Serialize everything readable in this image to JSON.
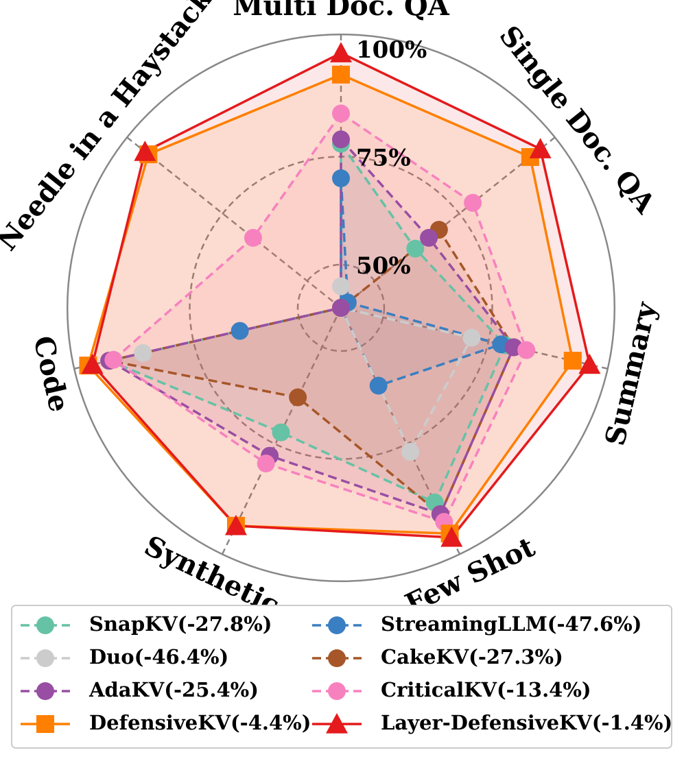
{
  "chart_data": {
    "type": "radar",
    "axes": [
      "Multi Doc. QA",
      "Single Doc. QA",
      "Summary",
      "Few Shot",
      "Synthetic",
      "Code",
      "Needle in a Haystack"
    ],
    "radial_range": [
      40,
      100
    ],
    "radial_ticks": [
      {
        "value": 50,
        "label": "50%"
      },
      {
        "value": 75,
        "label": "75%"
      },
      {
        "value": 100,
        "label": "100%"
      }
    ],
    "grid": true,
    "legend_position": "bottom",
    "series": [
      {
        "name": "SnapKV(-27.8%)",
        "color": "#66c2a5",
        "marker": "circle",
        "values": [
          78,
          62,
          79,
          90,
          72,
          95,
          40
        ]
      },
      {
        "name": "StreamingLLM(-47.6%)",
        "color": "#3a7fc1",
        "marker": "circle",
        "values": [
          70,
          42,
          78,
          60,
          40,
          64,
          40
        ]
      },
      {
        "name": "Duo(-46.4%)",
        "color": "#cccccc",
        "marker": "circle",
        "values": [
          45,
          40,
          71,
          77,
          40,
          87,
          40
        ]
      },
      {
        "name": "CakeKV(-27.3%)",
        "color": "#a65628",
        "marker": "circle",
        "values": [
          40,
          69,
          81,
          93,
          63,
          95,
          40
        ]
      },
      {
        "name": "AdaKV(-25.4%)",
        "color": "#984ea3",
        "marker": "circle",
        "values": [
          79,
          66,
          81,
          93,
          78,
          95,
          40
        ]
      },
      {
        "name": "CriticalKV(-13.4%)",
        "color": "#f781bf",
        "marker": "circle",
        "values": [
          85,
          79,
          84,
          95,
          80,
          94,
          66
        ]
      },
      {
        "name": "DefensiveKV(-4.4%)",
        "color": "#ff7f00",
        "marker": "square",
        "values": [
          94,
          96,
          95,
          98,
          96,
          100,
          97
        ]
      },
      {
        "name": "Layer-DefensiveKV(-1.4%)",
        "color": "#e41a1c",
        "marker": "triangle",
        "values": [
          99,
          99,
          99,
          99,
          96,
          99,
          98
        ]
      }
    ],
    "legend_order": [
      "SnapKV(-27.8%)",
      "StreamingLLM(-47.6%)",
      "Duo(-46.4%)",
      "CakeKV(-27.3%)",
      "AdaKV(-25.4%)",
      "CriticalKV(-13.4%)",
      "DefensiveKV(-4.4%)",
      "Layer-DefensiveKV(-1.4%)"
    ]
  }
}
